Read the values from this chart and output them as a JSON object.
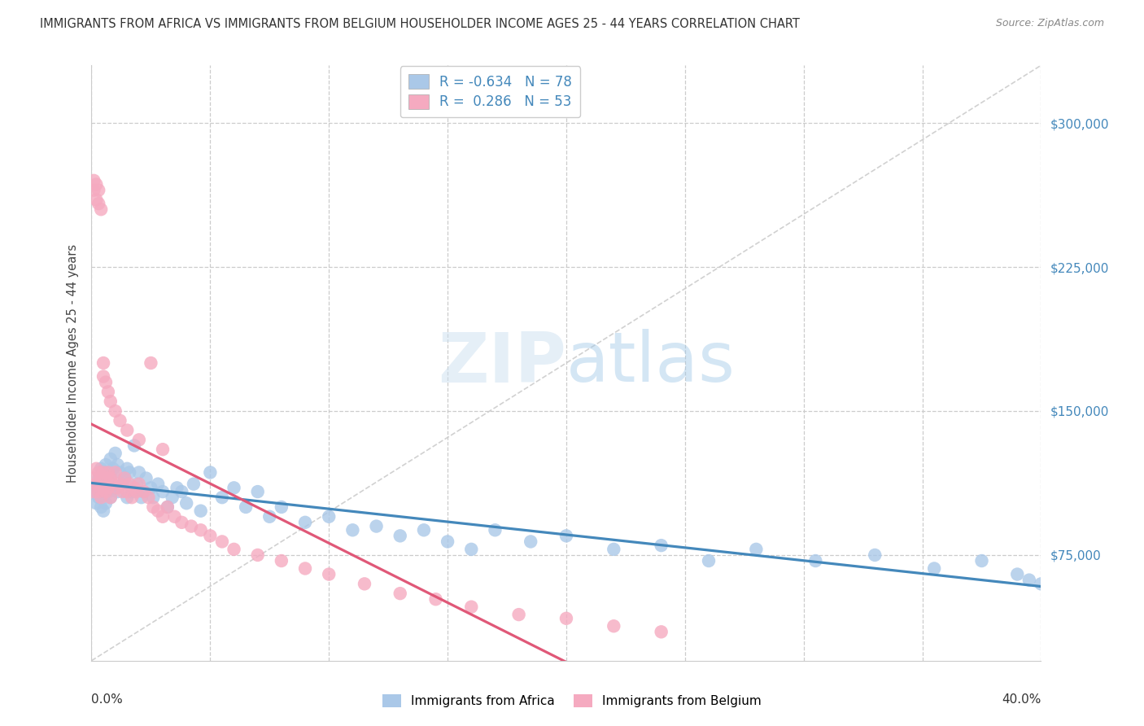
{
  "title": "IMMIGRANTS FROM AFRICA VS IMMIGRANTS FROM BELGIUM HOUSEHOLDER INCOME AGES 25 - 44 YEARS CORRELATION CHART",
  "source": "Source: ZipAtlas.com",
  "ylabel": "Householder Income Ages 25 - 44 years",
  "ytick_values": [
    75000,
    150000,
    225000,
    300000
  ],
  "ymin": 20000,
  "ymax": 330000,
  "xmin": 0.0,
  "xmax": 0.4,
  "africa_R": -0.634,
  "africa_N": 78,
  "belgium_R": 0.286,
  "belgium_N": 53,
  "africa_color": "#aac8e8",
  "africa_line_color": "#4488bb",
  "belgium_color": "#f5aac0",
  "belgium_line_color": "#e05878",
  "background_color": "#ffffff",
  "africa_x": [
    0.001,
    0.002,
    0.002,
    0.003,
    0.003,
    0.004,
    0.004,
    0.004,
    0.005,
    0.005,
    0.005,
    0.006,
    0.006,
    0.006,
    0.007,
    0.007,
    0.008,
    0.008,
    0.008,
    0.009,
    0.009,
    0.01,
    0.01,
    0.011,
    0.011,
    0.012,
    0.013,
    0.014,
    0.015,
    0.015,
    0.016,
    0.017,
    0.018,
    0.019,
    0.02,
    0.021,
    0.022,
    0.023,
    0.025,
    0.026,
    0.028,
    0.03,
    0.032,
    0.034,
    0.036,
    0.038,
    0.04,
    0.043,
    0.046,
    0.05,
    0.055,
    0.06,
    0.065,
    0.07,
    0.075,
    0.08,
    0.09,
    0.1,
    0.11,
    0.12,
    0.13,
    0.14,
    0.15,
    0.16,
    0.17,
    0.185,
    0.2,
    0.22,
    0.24,
    0.26,
    0.28,
    0.305,
    0.33,
    0.355,
    0.375,
    0.39,
    0.395,
    0.4
  ],
  "africa_y": [
    110000,
    108000,
    102000,
    115000,
    105000,
    120000,
    110000,
    100000,
    118000,
    108000,
    98000,
    122000,
    112000,
    102000,
    118000,
    108000,
    125000,
    115000,
    105000,
    120000,
    110000,
    128000,
    110000,
    122000,
    108000,
    118000,
    112000,
    115000,
    120000,
    105000,
    118000,
    108000,
    132000,
    112000,
    118000,
    105000,
    108000,
    115000,
    110000,
    105000,
    112000,
    108000,
    100000,
    105000,
    110000,
    108000,
    102000,
    112000,
    98000,
    118000,
    105000,
    110000,
    100000,
    108000,
    95000,
    100000,
    92000,
    95000,
    88000,
    90000,
    85000,
    88000,
    82000,
    78000,
    88000,
    82000,
    85000,
    78000,
    80000,
    72000,
    78000,
    72000,
    75000,
    68000,
    72000,
    65000,
    62000,
    60000
  ],
  "belgium_x": [
    0.001,
    0.001,
    0.002,
    0.002,
    0.003,
    0.003,
    0.004,
    0.004,
    0.005,
    0.005,
    0.006,
    0.006,
    0.007,
    0.007,
    0.008,
    0.008,
    0.009,
    0.01,
    0.011,
    0.012,
    0.013,
    0.014,
    0.015,
    0.016,
    0.017,
    0.018,
    0.019,
    0.02,
    0.022,
    0.024,
    0.026,
    0.028,
    0.03,
    0.032,
    0.035,
    0.038,
    0.042,
    0.046,
    0.05,
    0.055,
    0.06,
    0.07,
    0.08,
    0.09,
    0.1,
    0.115,
    0.13,
    0.145,
    0.16,
    0.18,
    0.2,
    0.22,
    0.24
  ],
  "belgium_y": [
    115000,
    108000,
    120000,
    112000,
    118000,
    108000,
    115000,
    105000,
    118000,
    110000,
    115000,
    108000,
    118000,
    110000,
    115000,
    105000,
    112000,
    118000,
    110000,
    112000,
    108000,
    115000,
    108000,
    112000,
    105000,
    110000,
    108000,
    112000,
    108000,
    105000,
    100000,
    98000,
    95000,
    100000,
    95000,
    92000,
    90000,
    88000,
    85000,
    82000,
    78000,
    75000,
    72000,
    68000,
    65000,
    60000,
    55000,
    52000,
    48000,
    44000,
    42000,
    38000,
    35000
  ],
  "belgium_outlier_x": [
    0.001,
    0.001,
    0.002,
    0.002,
    0.003,
    0.003,
    0.004,
    0.005
  ],
  "belgium_outlier_y": [
    270000,
    265000,
    268000,
    260000,
    265000,
    258000,
    255000,
    175000
  ],
  "belgium_mid_x": [
    0.005,
    0.006,
    0.007,
    0.008,
    0.01,
    0.012,
    0.015,
    0.02,
    0.025,
    0.03
  ],
  "belgium_mid_y": [
    168000,
    165000,
    160000,
    155000,
    150000,
    145000,
    140000,
    135000,
    175000,
    130000
  ]
}
